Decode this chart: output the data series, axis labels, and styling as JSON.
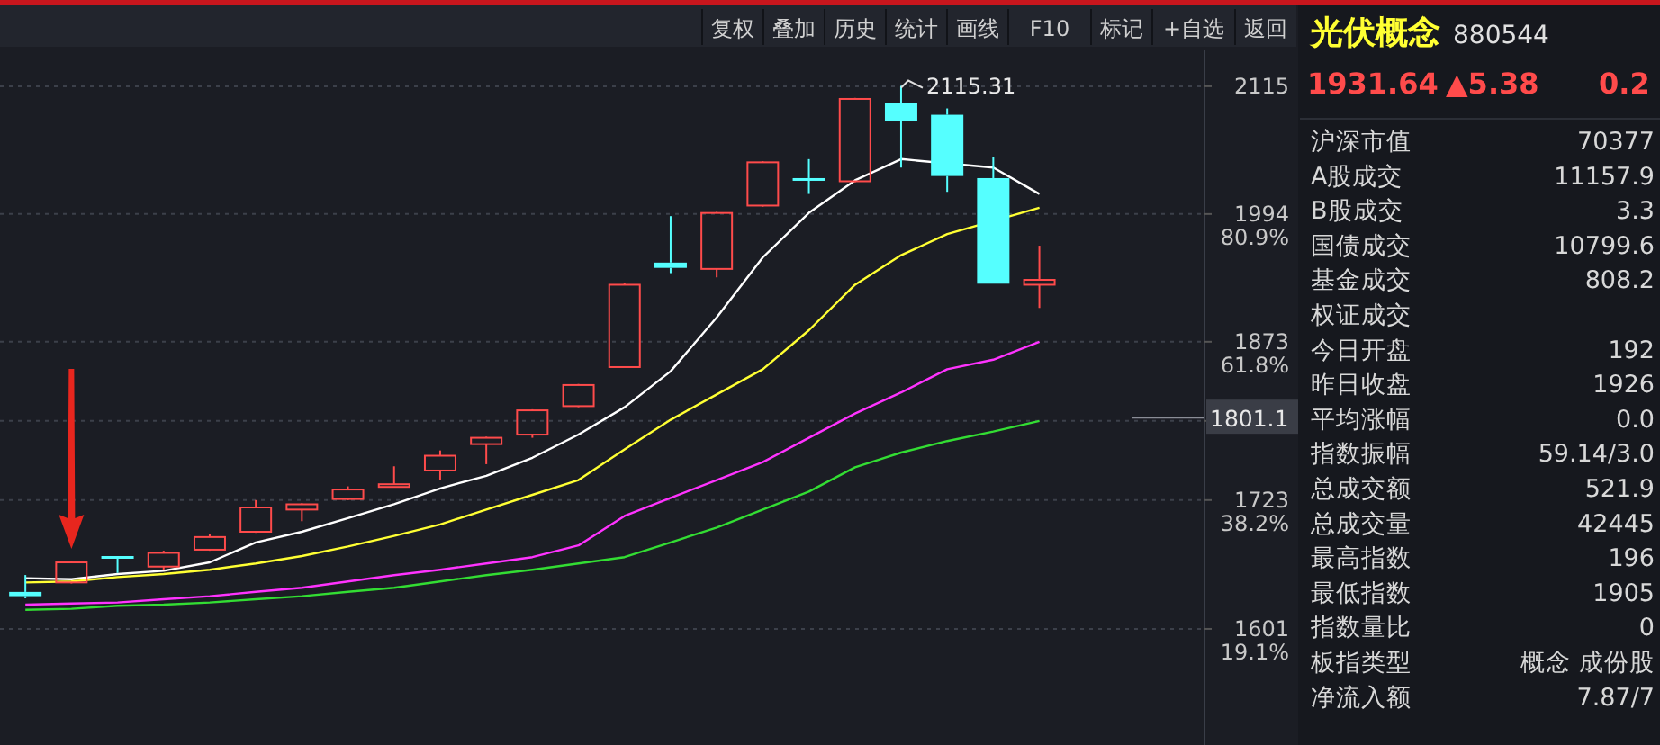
{
  "chart_data": [
    {
      "type": "candlestick",
      "categories": [
        null,
        null,
        null,
        null,
        null,
        null,
        null,
        null,
        null,
        null,
        null,
        null,
        null,
        null,
        null,
        null,
        null,
        null,
        null,
        null,
        null,
        null,
        null
      ],
      "ohlc": [
        [
          1636,
          1652,
          1630,
          1632
        ],
        [
          1645,
          1665,
          1644,
          1664
        ],
        [
          1670,
          1670,
          1654,
          1668
        ],
        [
          1660,
          1675,
          1657,
          1673
        ],
        [
          1676,
          1691,
          1675,
          1688
        ],
        [
          1693,
          1723,
          1692,
          1716
        ],
        [
          1714,
          1720,
          1703,
          1719
        ],
        [
          1724,
          1736,
          1723,
          1733
        ],
        [
          1736,
          1755,
          1736,
          1738
        ],
        [
          1751,
          1770,
          1742,
          1765
        ],
        [
          1776,
          1783,
          1757,
          1782
        ],
        [
          1785,
          1809,
          1782,
          1808
        ],
        [
          1812,
          1833,
          1811,
          1832
        ],
        [
          1849,
          1929,
          1849,
          1927
        ],
        [
          1948,
          1992,
          1938,
          1943
        ],
        [
          1942,
          1996,
          1934,
          1995
        ],
        [
          2002,
          2044,
          2001,
          2043
        ],
        [
          2028,
          2046,
          2013,
          2026
        ],
        [
          2025,
          2104,
          2024,
          2103
        ],
        [
          2099,
          2115.31,
          2038,
          2082
        ],
        [
          2088,
          2094,
          2015,
          2030
        ],
        [
          2028,
          2048,
          1928,
          1928
        ],
        [
          1927,
          1964,
          1905,
          1931.64
        ]
      ],
      "colors": [
        "#55ffff",
        "#ff4b4b",
        "#55ffff",
        "#ff4b4b",
        "#ff4b4b",
        "#ff4b4b",
        "#ff4b4b",
        "#ff4b4b",
        "#ff4b4b",
        "#ff4b4b",
        "#ff4b4b",
        "#ff4b4b",
        "#ff4b4b",
        "#ff4b4b",
        "#55ffff",
        "#ff4b4b",
        "#ff4b4b",
        "#55ffff",
        "#ff4b4b",
        "#55ffff",
        "#55ffff",
        "#55ffff",
        "#ff4b4b"
      ],
      "series": [
        {
          "type": "line",
          "color": "#ffffff",
          "values": [
            1649,
            1648,
            1653,
            1656,
            1664,
            1683,
            1693,
            1706,
            1719,
            1734,
            1746,
            1763,
            1785,
            1811,
            1845,
            1896,
            1953,
            1995,
            2026,
            2046,
            null,
            2038,
            2013
          ]
        },
        {
          "type": "line",
          "color": "#ffff33",
          "values": [
            1645,
            1646,
            1650,
            1653,
            1657,
            1663,
            1670,
            1679,
            1689,
            1700,
            1714,
            1728,
            1742,
            1771,
            1799,
            1823,
            1847,
            1884,
            1927,
            1955,
            1975,
            null,
            2000
          ]
        },
        {
          "type": "line",
          "color": "#ff33ff",
          "values": [
            1624,
            1625,
            1626,
            1629,
            1632,
            1636,
            1640,
            1646,
            1652,
            1657,
            1663,
            1669,
            1680,
            1708,
            1725,
            1742,
            1759,
            1782,
            1805,
            1825,
            1847,
            1856,
            1873
          ]
        },
        {
          "type": "line",
          "color": "#33dd33",
          "values": [
            1619,
            1620,
            1623,
            1624,
            1626,
            1629,
            1632,
            1636,
            1640,
            1646,
            1652,
            1657,
            1663,
            1669,
            1683,
            1697,
            1714,
            1731,
            1754,
            1768,
            1779,
            1788,
            1798
          ]
        }
      ],
      "ylim": [
        1491,
        2149
      ],
      "yticks": [
        2115,
        1994,
        1873,
        {
          "value": 1798,
          "label": null
        },
        1723,
        1601
      ],
      "y2lim": [
        1.8,
        105.3
      ],
      "y2ticks": [
        {
          "value": 80.9,
          "label": "80.9%"
        },
        {
          "value": 61.8,
          "label": "61.8%"
        },
        {
          "value": 38.2,
          "label": "38.2%"
        },
        {
          "value": 19.1,
          "label": "19.1%"
        }
      ],
      "ref_lines": [
        {
          "axis": "y",
          "value": 1801.1,
          "label": "1801.1"
        }
      ],
      "grid": "y",
      "tick_labels": "y",
      "annotations": [
        "2115.31",
        "复权",
        "叠加",
        "历史",
        "统计",
        "画线",
        "F10",
        "标记",
        "+自选",
        "返回"
      ]
    },
    {
      "type": "other",
      "title": "光伏概念",
      "subtitle": "880544",
      "color": "#ff4b4b",
      "annotations": [
        "1931.64",
        "▲5.38",
        "0.2"
      ],
      "categories": [
        "沪深市值",
        "A股成交",
        "B股成交",
        "国债成交",
        "基金成交",
        "权证成交",
        "今日开盘",
        "昨日收盘",
        "平均涨幅",
        "指数振幅",
        "总成交额",
        "总成交量",
        "最高指数",
        "最低指数",
        "指数量比",
        "板指类型",
        "净流入额"
      ],
      "value_labels": [
        "70377",
        "11157.9",
        "3.3",
        "10799.6",
        "808.2",
        null,
        "192",
        "1926",
        "0.0",
        "59.14/3.0",
        "521.9",
        "42445",
        "196",
        "1905",
        "0",
        "概念 成份股",
        "7.87/7"
      ]
    }
  ]
}
